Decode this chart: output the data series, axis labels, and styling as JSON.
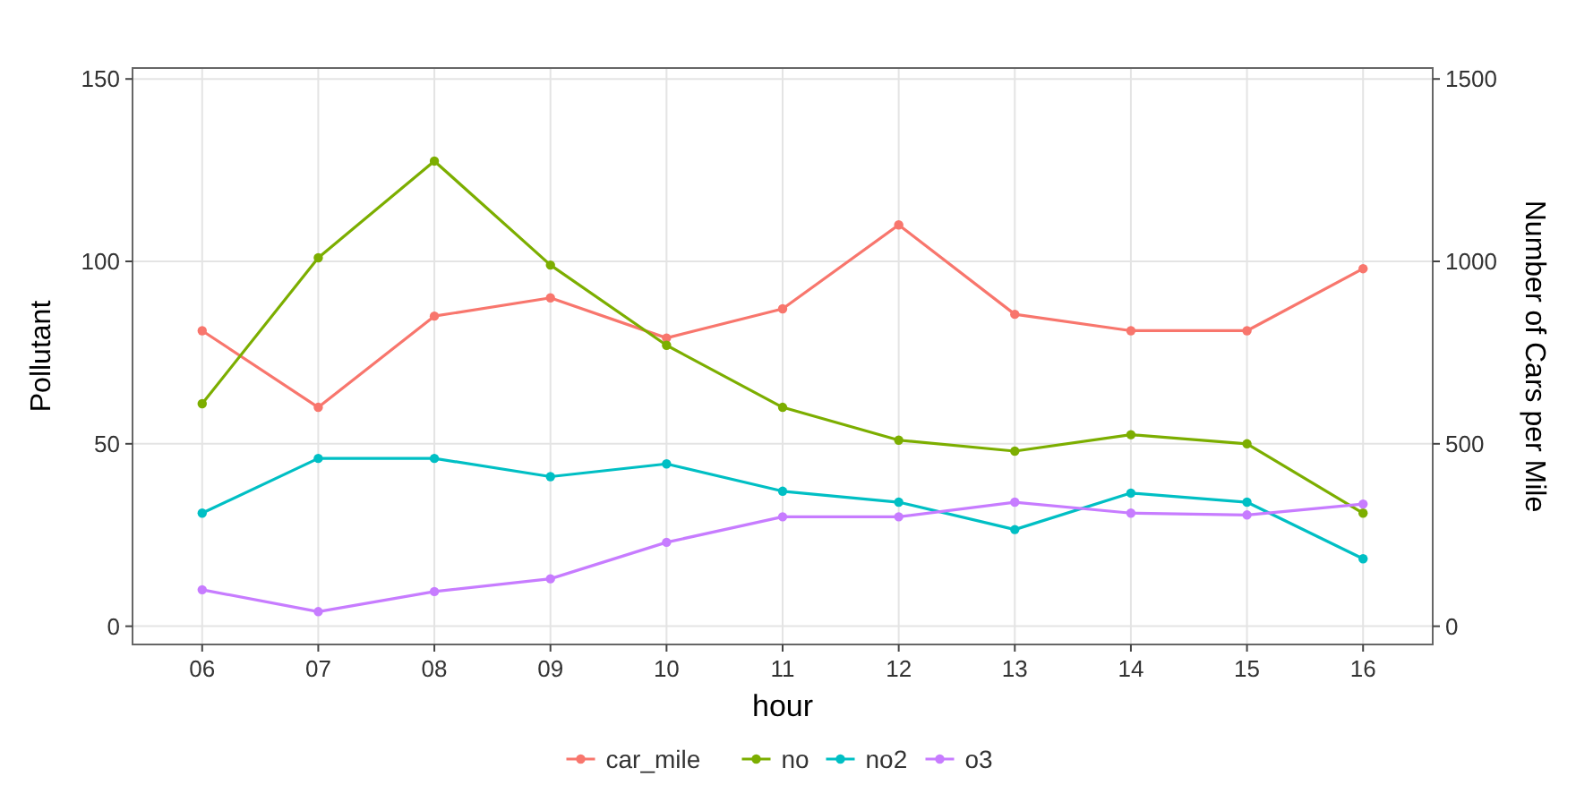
{
  "chart_data": {
    "type": "line",
    "xlabel": "hour",
    "ylabel": "Pollutant",
    "y2label": "Number of Cars per Mile",
    "categories": [
      "06",
      "07",
      "08",
      "09",
      "10",
      "11",
      "12",
      "13",
      "14",
      "15",
      "16"
    ],
    "series": [
      {
        "name": "car_mile",
        "color": "#f8766d",
        "axis": "y2",
        "values": [
          810,
          600,
          850,
          900,
          790,
          870,
          1100,
          855,
          810,
          810,
          980
        ]
      },
      {
        "name": "no",
        "color": "#7cae00",
        "values": [
          61,
          101,
          127.5,
          99,
          77,
          60,
          51,
          48,
          52.5,
          50,
          31
        ]
      },
      {
        "name": "no2",
        "color": "#00bfc4",
        "values": [
          31,
          46,
          46,
          41,
          44.5,
          37,
          34,
          26.5,
          36.5,
          34,
          18.5
        ]
      },
      {
        "name": "o3",
        "color": "#c77cff",
        "values": [
          10,
          4,
          9.5,
          13,
          23,
          30,
          30,
          34,
          31,
          30.5,
          33.5
        ]
      }
    ],
    "ylim": [
      -5,
      153
    ],
    "yticks": [
      0,
      50,
      100,
      150
    ],
    "y2lim": [
      -50,
      1530
    ],
    "y2ticks": [
      0,
      500,
      1000,
      1500
    ],
    "grid": true,
    "legend": "bottom",
    "marker": "circle",
    "line_style": "solid"
  }
}
